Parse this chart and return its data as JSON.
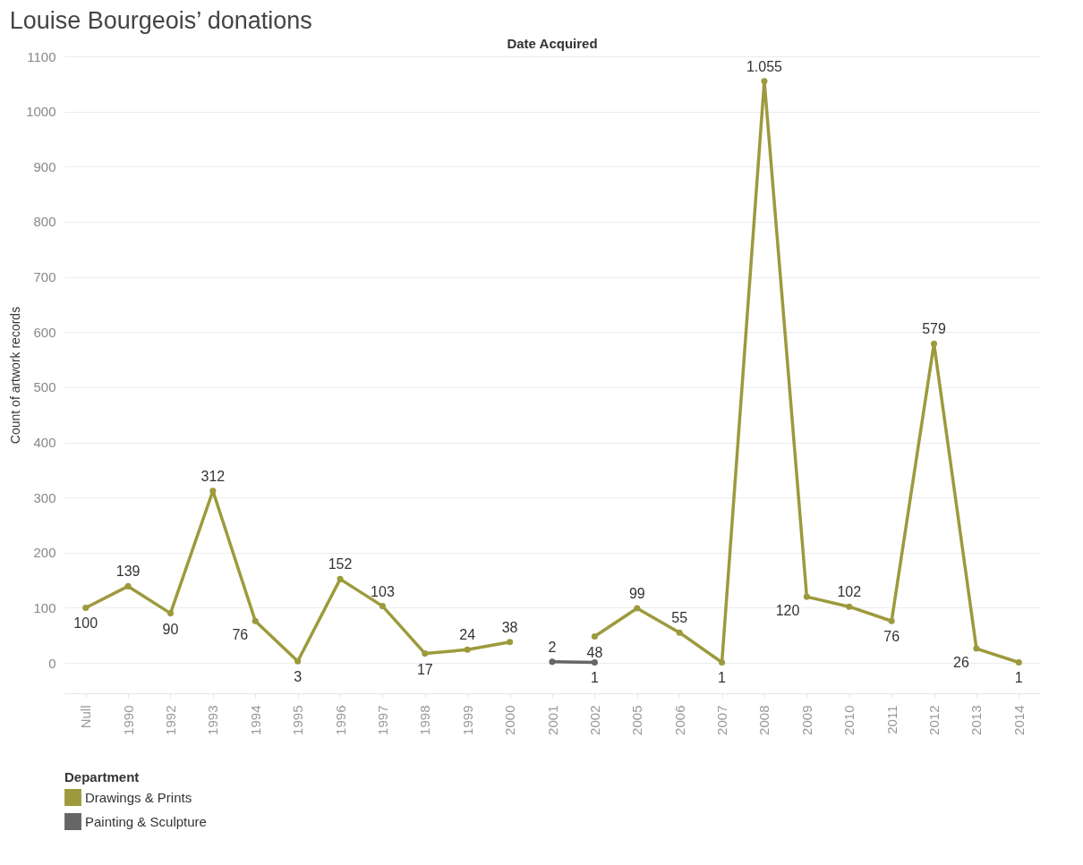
{
  "chart_data": {
    "type": "line",
    "title": "Louise Bourgeois’ donations",
    "xlabel": "Date Acquired",
    "ylabel": "Count of artwork records",
    "legend_title": "Department",
    "categories": [
      "Null",
      "1990",
      "1992",
      "1993",
      "1994",
      "1995",
      "1996",
      "1997",
      "1998",
      "1999",
      "2000",
      "2001",
      "2002",
      "2005",
      "2006",
      "2007",
      "2008",
      "2009",
      "2010",
      "2011",
      "2012",
      "2013",
      "2014"
    ],
    "series": [
      {
        "name": "Drawings & Prints",
        "color": "#9c9a3c",
        "values": [
          100,
          139,
          90,
          312,
          76,
          3,
          152,
          103,
          17,
          24,
          38,
          null,
          48,
          99,
          55,
          1,
          1055,
          120,
          102,
          76,
          579,
          26,
          1
        ],
        "value_labels": [
          "100",
          "139",
          "90",
          "312",
          "76",
          "3",
          "152",
          "103",
          "17",
          "24",
          "38",
          null,
          "48",
          "99",
          "55",
          "1",
          "1.055",
          "120",
          "102",
          "76",
          "579",
          "26",
          "1"
        ]
      },
      {
        "name": "Painting & Sculpture",
        "color": "#666666",
        "values": [
          null,
          null,
          null,
          null,
          null,
          null,
          null,
          null,
          null,
          null,
          null,
          2,
          1,
          null,
          null,
          null,
          null,
          null,
          null,
          null,
          null,
          null,
          null
        ],
        "value_labels": [
          null,
          null,
          null,
          null,
          null,
          null,
          null,
          null,
          null,
          null,
          null,
          "2",
          "1",
          null,
          null,
          null,
          null,
          null,
          null,
          null,
          null,
          null,
          null
        ]
      }
    ],
    "ylim": [
      -55,
      1100
    ],
    "yticks": [
      0,
      100,
      200,
      300,
      400,
      500,
      600,
      700,
      800,
      900,
      1000,
      1100
    ],
    "grid": "y",
    "legend": "bottom left",
    "marker": "circle",
    "line_style": "solid"
  }
}
